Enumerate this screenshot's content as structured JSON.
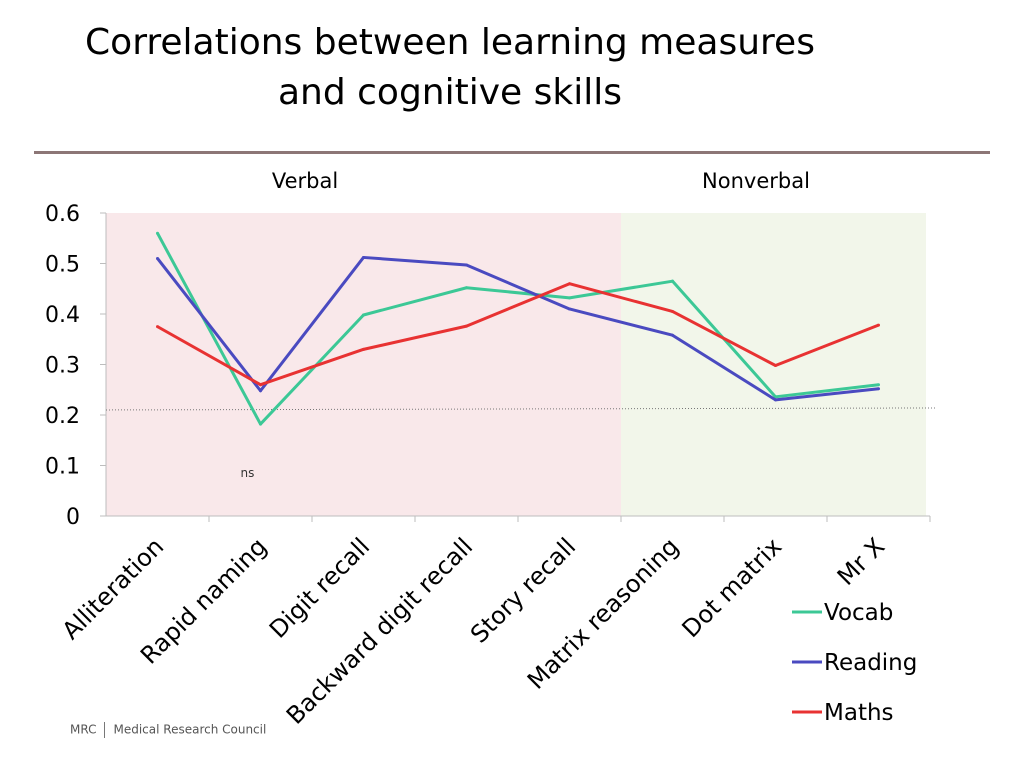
{
  "title_line1": "Correlations between learning measures",
  "title_line2": "and cognitive skills",
  "logo": {
    "abbr": "MRC",
    "name": "Medical Research Council"
  },
  "chart_data": {
    "type": "line",
    "categories": [
      "Alliteration",
      "Rapid naming",
      "Digit recall",
      "Backward digit recall",
      "Story recall",
      "Matrix reasoning",
      "Dot matrix",
      "Mr X"
    ],
    "ylim": [
      0,
      0.6
    ],
    "yticks": [
      "0",
      "0.1",
      "0.2",
      "0.3",
      "0.4",
      "0.5",
      "0.6"
    ],
    "groups": [
      {
        "label": "Verbal",
        "from": 0,
        "to": 4,
        "color": "#f9e8ea"
      },
      {
        "label": "Nonverbal",
        "from": 5,
        "to": 7,
        "color": "#f2f6ea"
      }
    ],
    "reference_line": 0.21,
    "annotation": {
      "text": "ns",
      "category": 1,
      "value": 0.085
    },
    "legend_position": "bottom-right",
    "series": [
      {
        "name": "Vocab",
        "color": "#3cc896",
        "values": [
          0.56,
          0.182,
          0.398,
          0.452,
          0.432,
          0.465,
          0.236,
          0.26
        ]
      },
      {
        "name": "Reading",
        "color": "#4a4ac0",
        "values": [
          0.51,
          0.248,
          0.512,
          0.497,
          0.41,
          0.358,
          0.23,
          0.252
        ]
      },
      {
        "name": "Maths",
        "color": "#e83232",
        "values": [
          0.375,
          0.26,
          0.33,
          0.376,
          0.46,
          0.405,
          0.298,
          0.378
        ]
      }
    ]
  }
}
